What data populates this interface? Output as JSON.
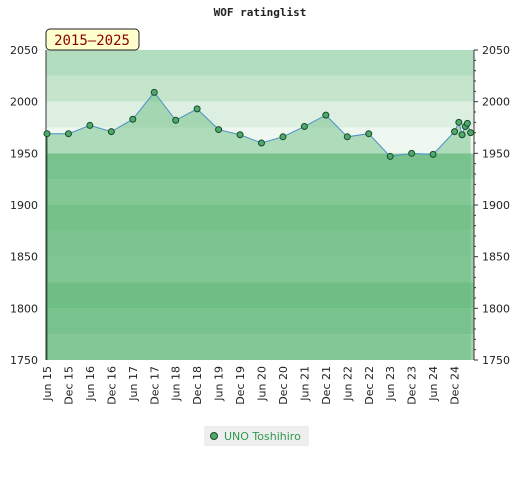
{
  "chart_data": {
    "type": "area",
    "title": "WOF ratinglist",
    "badge": "2015—2025",
    "ylim": [
      1750,
      2050
    ],
    "yticks": [
      1750,
      1800,
      1850,
      1900,
      1950,
      2000,
      2050
    ],
    "x_tick_labels": [
      "Jun 15",
      "Dec 15",
      "Jun 16",
      "Dec 16",
      "Jun 17",
      "Dec 17",
      "Jun 18",
      "Dec 18",
      "Jun 19",
      "Dec 19",
      "Jun 20",
      "Dec 20",
      "Jun 21",
      "Dec 21",
      "Jun 22",
      "Dec 22",
      "Jun 23",
      "Dec 23",
      "Jun 24",
      "Dec 24"
    ],
    "grid": true,
    "legend_position": "bottom",
    "series": [
      {
        "name": "UNO Toshihiro",
        "color": "#4caa6a",
        "x": [
          0,
          1,
          2,
          3,
          4,
          5,
          6,
          7,
          8,
          9,
          10,
          11,
          12,
          13,
          14,
          15,
          16,
          17,
          18,
          19,
          19.2,
          19.35,
          19.5,
          19.6,
          19.75
        ],
        "values": [
          1969,
          1969,
          1977,
          1971,
          1983,
          2009,
          1982,
          1993,
          1973,
          1968,
          1960,
          1966,
          1976,
          1987,
          1966,
          1969,
          1947,
          1950,
          1949,
          1971,
          1980,
          1968,
          1976,
          1979,
          1970
        ]
      }
    ]
  }
}
